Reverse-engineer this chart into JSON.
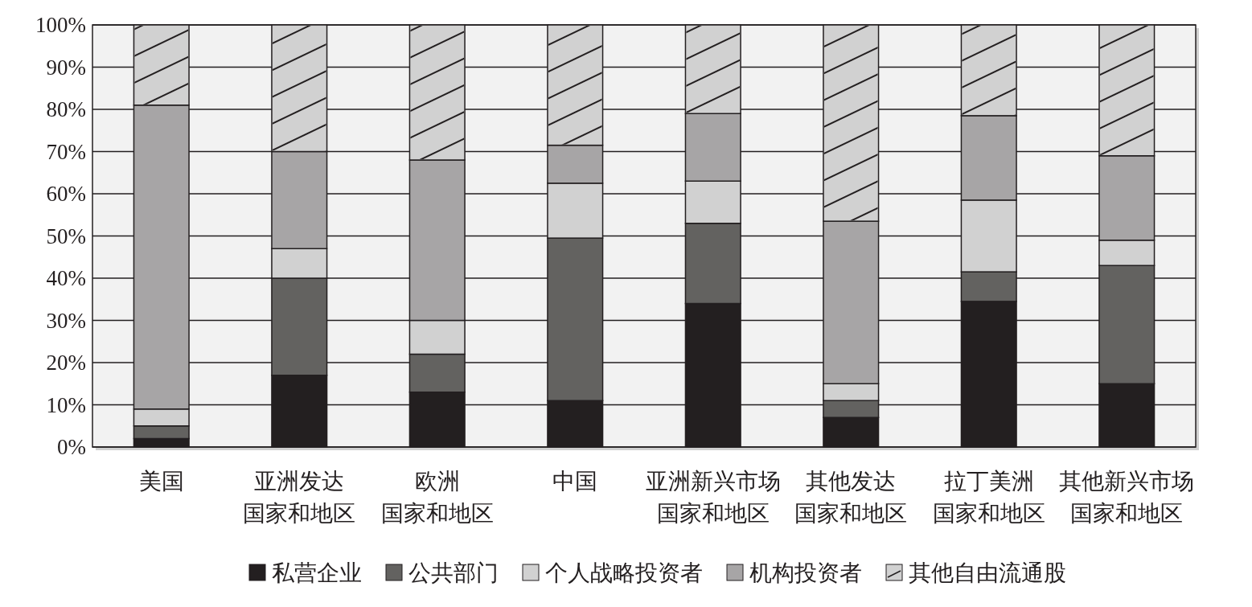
{
  "chart_data": {
    "type": "bar",
    "stacked": true,
    "categories": [
      "美国",
      "亚洲发达国家和地区",
      "欧洲国家和地区",
      "中国",
      "亚洲新兴市场国家和地区",
      "其他发达国家和地区",
      "拉丁美洲国家和地区",
      "其他新兴市场国家和地区"
    ],
    "series": [
      {
        "name": "私营企业",
        "color": "#231f20",
        "values": [
          2,
          17,
          13,
          11,
          34,
          7,
          34.5,
          15
        ]
      },
      {
        "name": "公共部门",
        "color": "#636260",
        "values": [
          3,
          23,
          9,
          38.5,
          19,
          4,
          7,
          28
        ]
      },
      {
        "name": "个人战略投资者",
        "color": "#d1d1d1",
        "values": [
          4,
          7,
          8,
          13,
          10,
          4,
          17,
          6
        ]
      },
      {
        "name": "机构投资者",
        "color": "#a7a5a6",
        "values": [
          72,
          23,
          38,
          9,
          16,
          38.5,
          20,
          20
        ]
      },
      {
        "name": "其他自由流通股",
        "color": "#d1d1d1",
        "values": [
          19,
          30,
          32,
          28.5,
          21,
          46.5,
          21.5,
          31
        ]
      }
    ],
    "ylim": [
      0,
      100
    ],
    "yticks": [
      {
        "value": 0,
        "label": "0%"
      },
      {
        "value": 10,
        "label": "10%"
      },
      {
        "value": 20,
        "label": "20%"
      },
      {
        "value": 30,
        "label": "30%"
      },
      {
        "value": 40,
        "label": "40%"
      },
      {
        "value": 50,
        "label": "50%"
      },
      {
        "value": 60,
        "label": "60%"
      },
      {
        "value": 70,
        "label": "70%"
      },
      {
        "value": 80,
        "label": "80%"
      },
      {
        "value": 90,
        "label": "90%"
      },
      {
        "value": 100,
        "label": "100%"
      }
    ],
    "grid": "y",
    "legend": "bottom"
  }
}
